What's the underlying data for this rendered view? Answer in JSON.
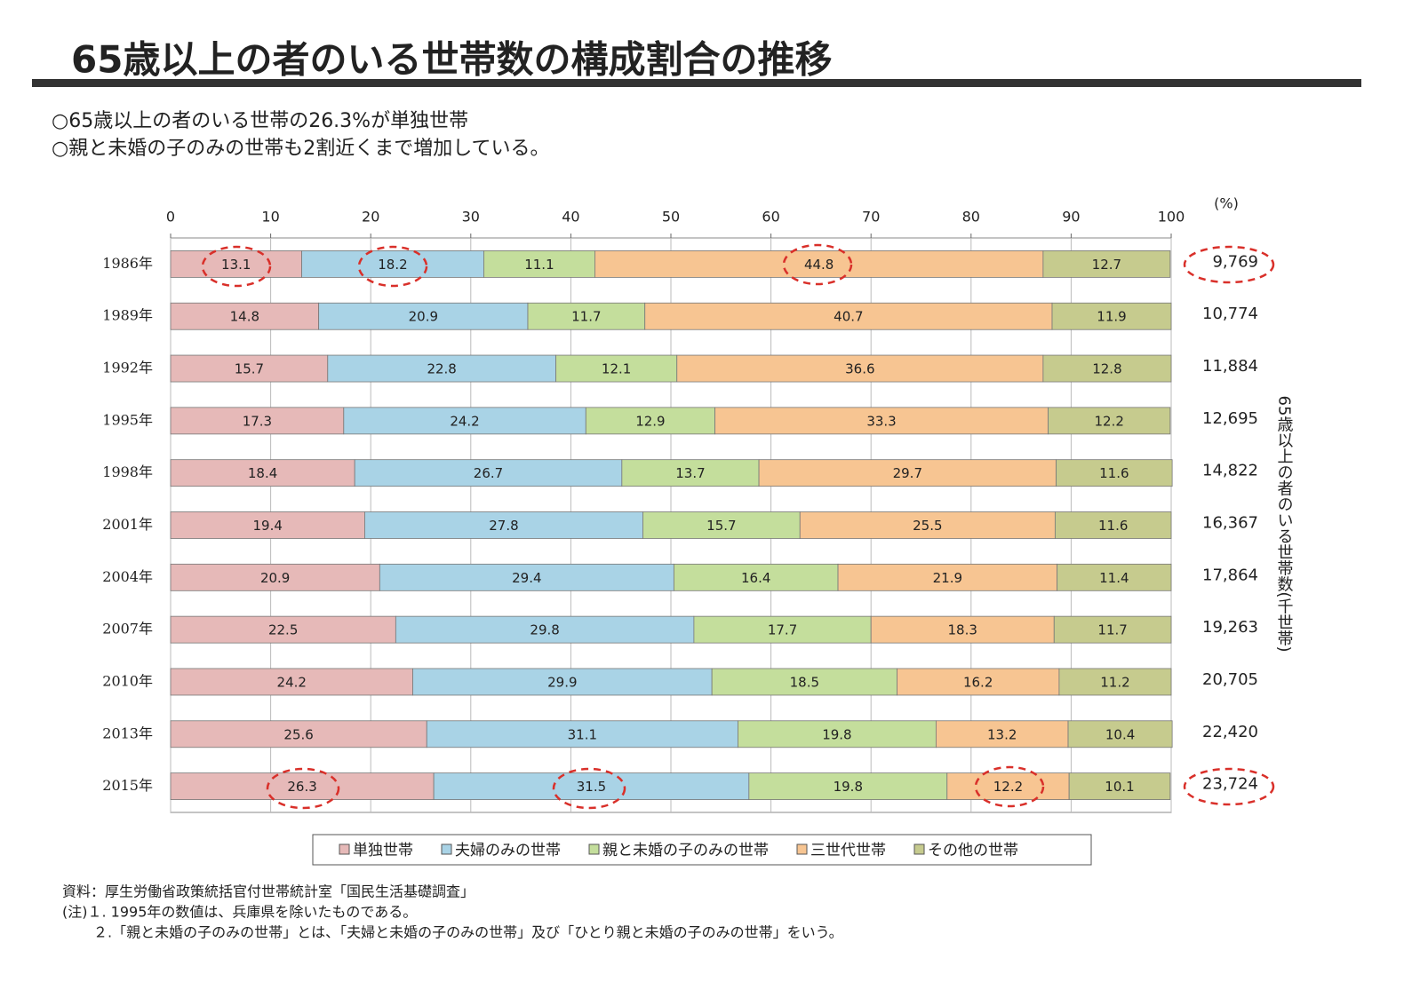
{
  "chart_data": {
    "type": "stacked_barh",
    "title": "65歳以上の者のいる世帯数の構成割合の推移",
    "bullets": [
      "○65歳以上の者のいる世帯の26.3%が単独世帯",
      "○親と未婚の子のみの世帯も2割近くまで増加している。"
    ],
    "x_unit": "(%)",
    "categories": [
      "1986年",
      "1989年",
      "1992年",
      "1995年",
      "1998年",
      "2001年",
      "2004年",
      "2007年",
      "2010年",
      "2013年",
      "2015年"
    ],
    "series": [
      {
        "name": "単独世帯",
        "color": "#e6b9b8",
        "values": [
          13.1,
          14.8,
          15.7,
          17.3,
          18.4,
          19.4,
          20.9,
          22.5,
          24.2,
          25.6,
          26.3
        ]
      },
      {
        "name": "夫婦のみの世帯",
        "color": "#a9d3e6",
        "values": [
          18.2,
          20.9,
          22.8,
          24.2,
          26.7,
          27.8,
          29.4,
          29.8,
          29.9,
          31.1,
          31.5
        ]
      },
      {
        "name": "親と未婚の子のみの世帯",
        "color": "#c4de9c",
        "values": [
          11.1,
          11.7,
          12.1,
          12.9,
          13.7,
          15.7,
          16.4,
          17.7,
          18.5,
          19.8,
          19.8
        ]
      },
      {
        "name": "三世代世帯",
        "color": "#f7c592",
        "values": [
          44.8,
          40.7,
          36.6,
          33.3,
          29.7,
          25.5,
          21.9,
          18.3,
          16.2,
          13.2,
          12.2
        ]
      },
      {
        "name": "その他の世帯",
        "color": "#c6cb8e",
        "values": [
          12.7,
          11.9,
          12.8,
          12.2,
          11.6,
          11.6,
          11.4,
          11.7,
          11.2,
          10.4,
          10.1
        ]
      }
    ],
    "households": {
      "label": "65歳以上の者のいる世帯数(千世帯)",
      "values": [
        9769,
        10774,
        11884,
        12695,
        14822,
        16367,
        17864,
        19263,
        20705,
        22420,
        23724
      ],
      "value_labels": [
        "9,769",
        "10,774",
        "11,884",
        "12,695",
        "14,822",
        "16,367",
        "17,864",
        "19,263",
        "20,705",
        "22,420",
        "23,724"
      ]
    },
    "xlim": [
      0,
      100
    ],
    "xticks": [
      0,
      10,
      20,
      30,
      40,
      50,
      60,
      70,
      80,
      90,
      100
    ],
    "grid": true,
    "notes": [
      "資料：厚生労働省政策統括官付世帯統計室「国民生活基礎調査」",
      "(注)１. 1995年の数値は、兵庫県を除いたものである。",
      "２.「親と未婚の子のみの世帯」とは、「夫婦と未婚の子のみの世帯」及び「ひとり親と未婚の子のみの世帯」をいう。"
    ]
  }
}
